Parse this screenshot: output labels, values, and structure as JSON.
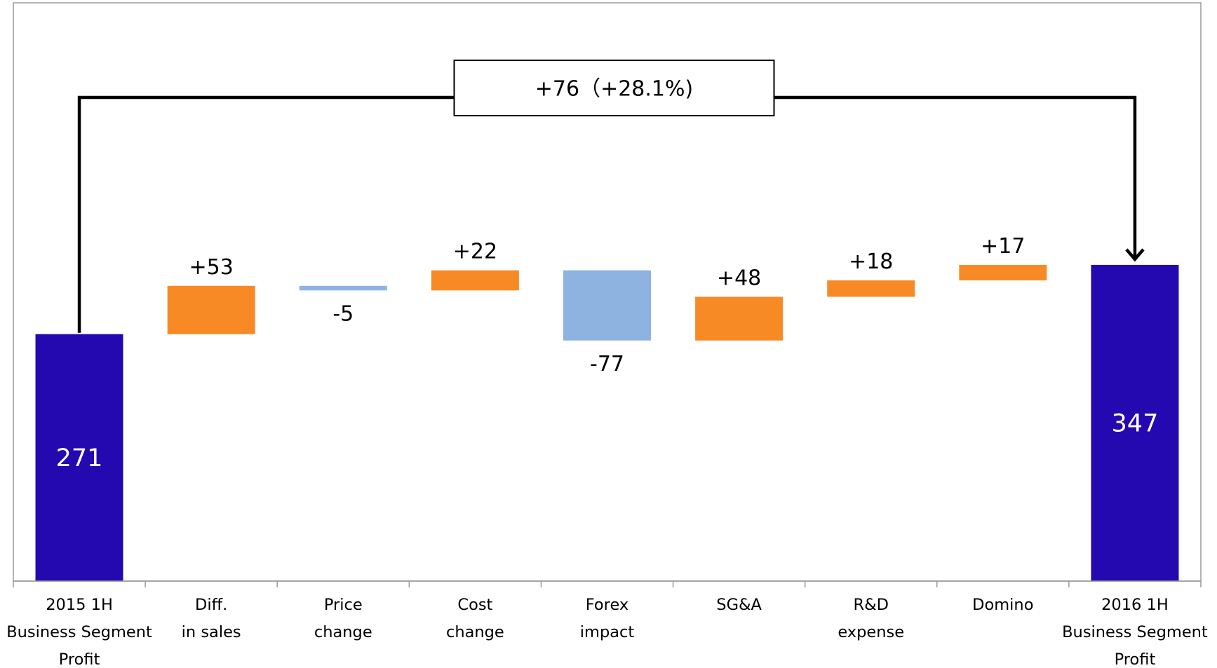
{
  "chart_data": {
    "type": "bar",
    "subtype": "waterfall",
    "categories": [
      [
        "2015 1H",
        "Business Segment",
        "Profit"
      ],
      [
        "Diff.",
        "in sales"
      ],
      [
        "Price",
        "change"
      ],
      [
        "Cost",
        "change"
      ],
      [
        "Forex",
        "impact"
      ],
      [
        "SG&A"
      ],
      [
        "R&D",
        "expense"
      ],
      [
        "Domino"
      ],
      [
        "2016 1H",
        "Business Segment",
        "Profit"
      ]
    ],
    "values": [
      271,
      53,
      -5,
      22,
      -77,
      48,
      18,
      17,
      347
    ],
    "kinds": [
      "total",
      "delta",
      "delta",
      "delta",
      "delta",
      "delta",
      "delta",
      "delta",
      "total"
    ],
    "value_labels": [
      "271",
      "+53",
      "-5",
      "+22",
      "-77",
      "+48",
      "+18",
      "+17",
      "347"
    ],
    "summary_label": "+76（+28.1%)",
    "ylim": [
      0,
      375
    ],
    "grid": false,
    "legend": "none",
    "title": "",
    "xlabel": "",
    "ylabel": "",
    "colors": {
      "total": "#2408B0",
      "increase": "#F78A25",
      "decrease": "#8EB3E1",
      "axis": "#999999",
      "text": "#000000",
      "total_label": "#FFFFFF",
      "connector": "#000000"
    }
  }
}
